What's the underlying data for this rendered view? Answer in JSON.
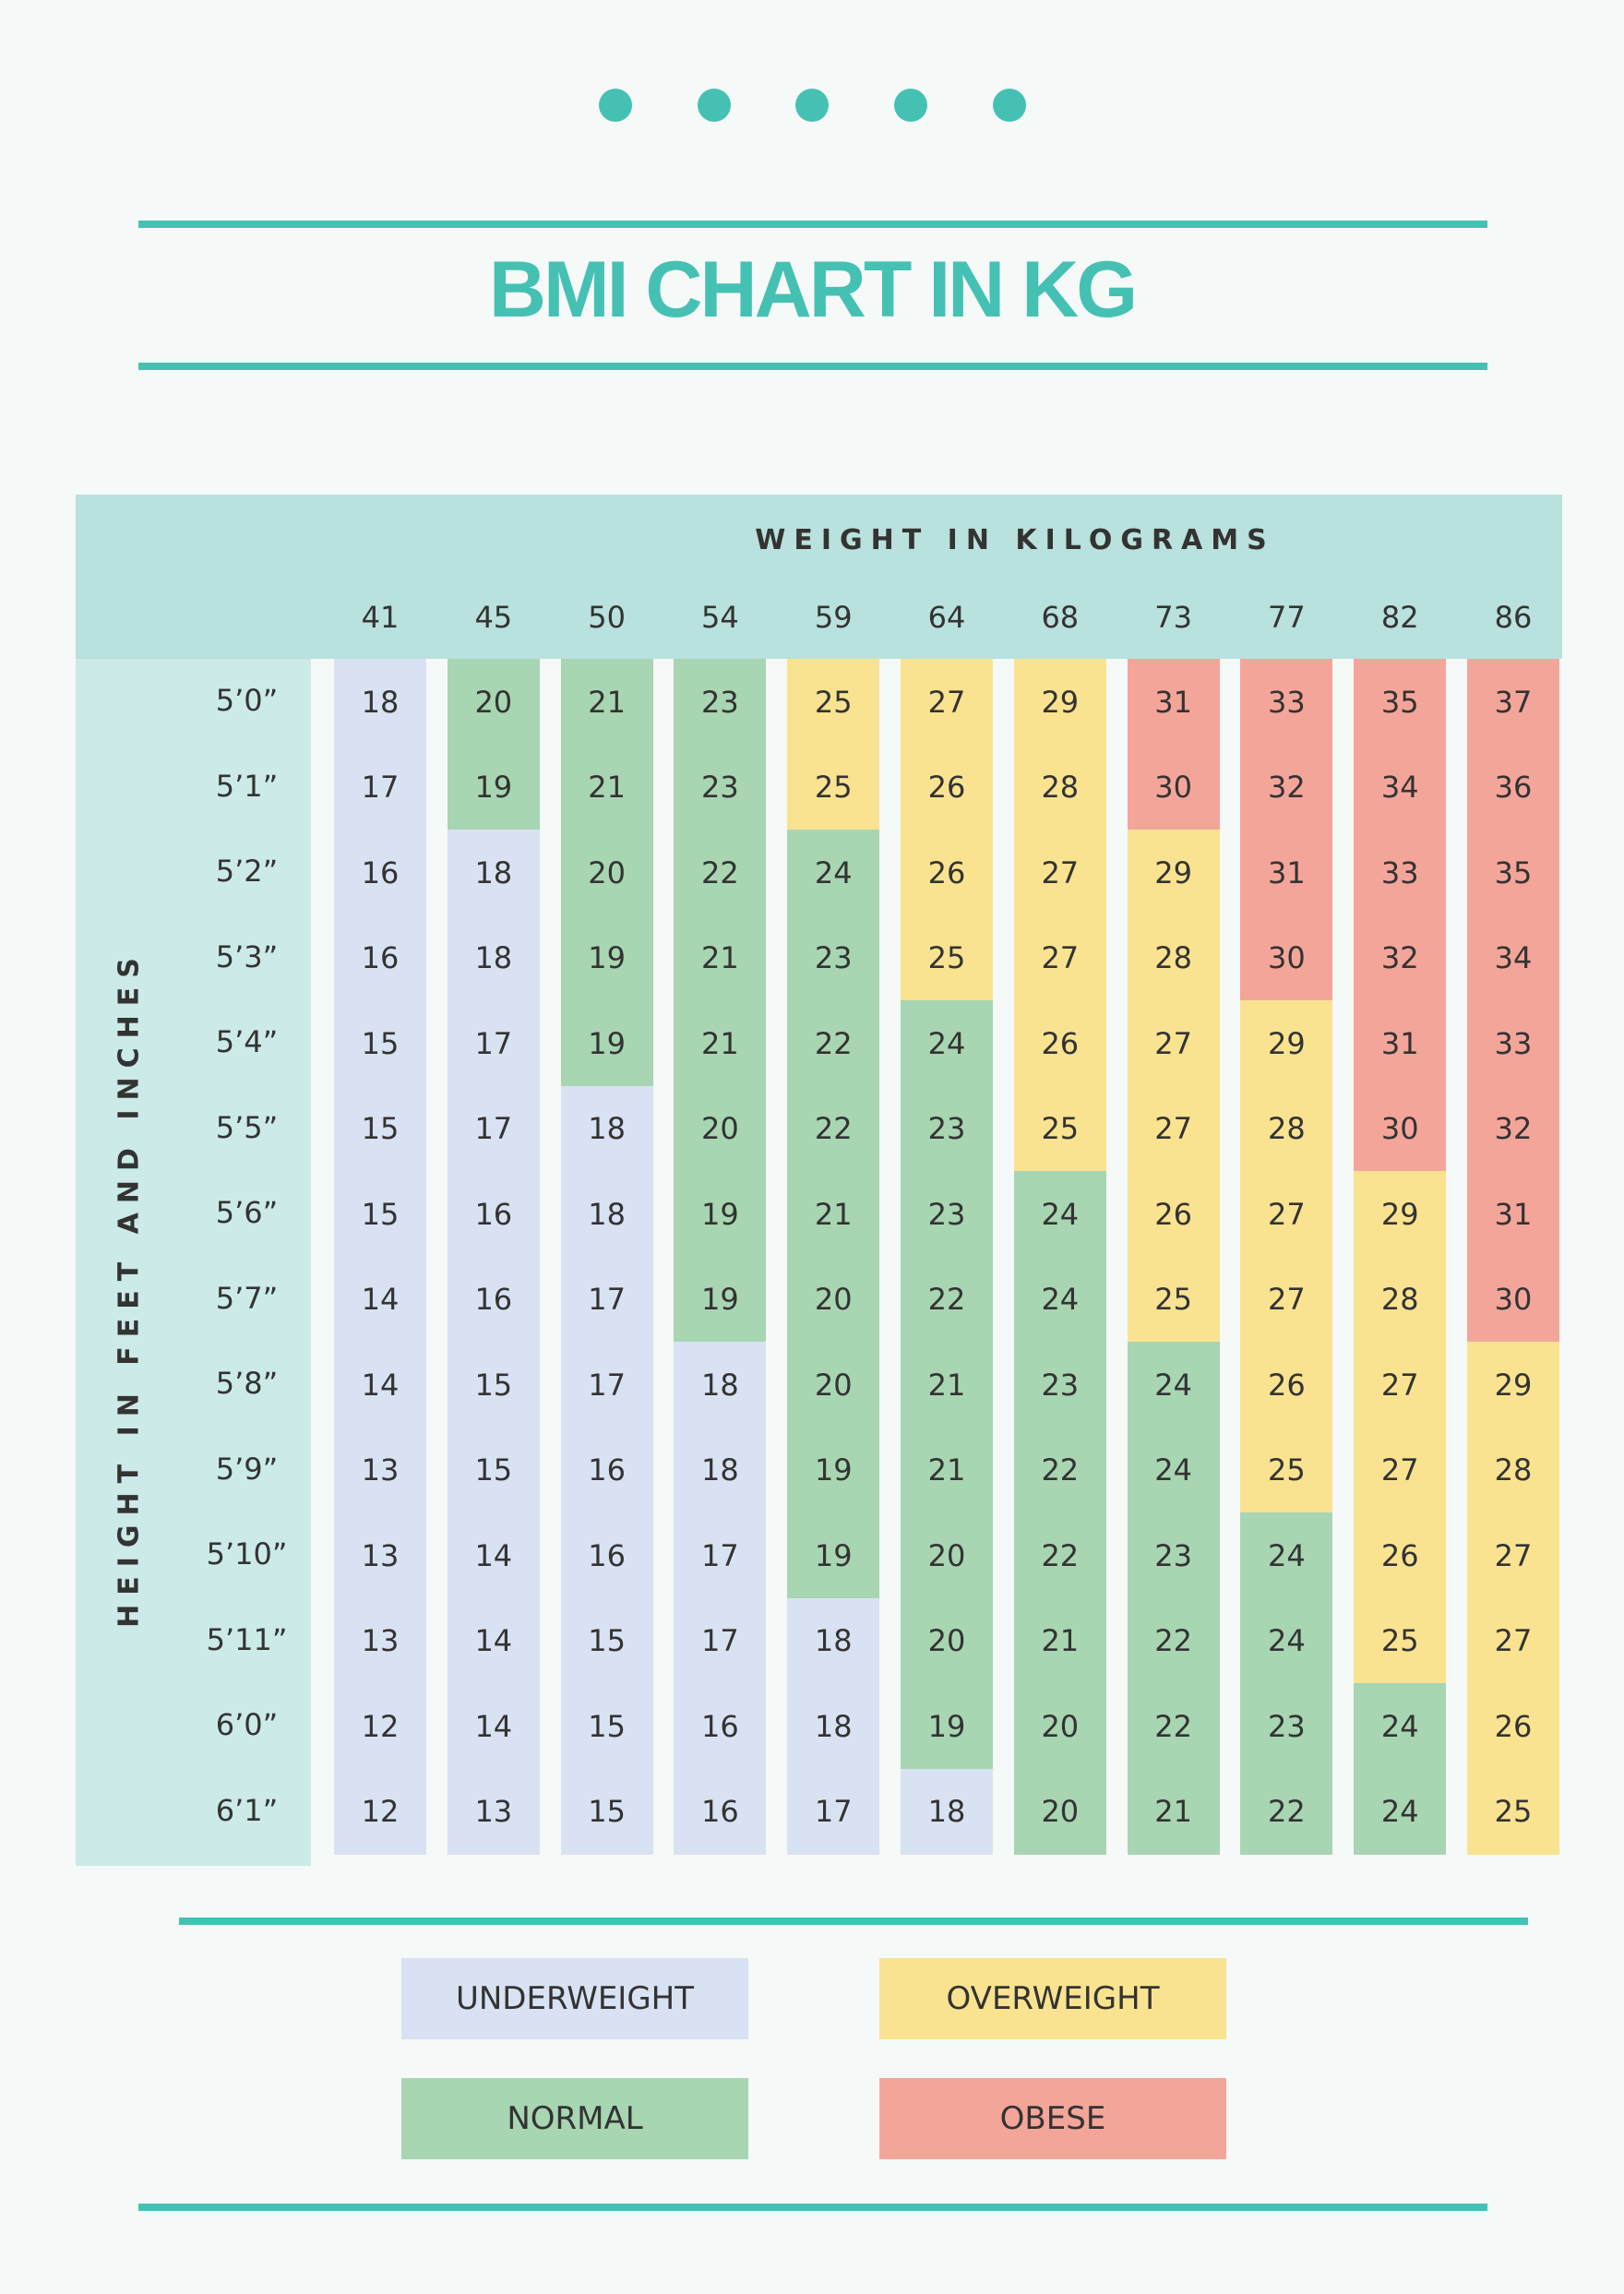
{
  "title": "BMI CHART IN KG",
  "colors": {
    "accent": "#45c1b4",
    "underweight": "#d9e2f2",
    "normal": "#a8d5b2",
    "overweight": "#fae390",
    "obese": "#f4a59a",
    "header": "#b9e1dd",
    "side": "#cbeae8"
  },
  "chart_data": {
    "type": "heatmap",
    "title": "BMI CHART IN KG",
    "xlabel": "WEIGHT IN KILOGRAMS",
    "ylabel": "HEIGHT IN FEET AND INCHES",
    "x": [
      "41",
      "45",
      "50",
      "54",
      "59",
      "64",
      "68",
      "73",
      "77",
      "82",
      "86"
    ],
    "y": [
      "5’0”",
      "5’1”",
      "5’2”",
      "5’3”",
      "5’4”",
      "5’5”",
      "5’6”",
      "5’7”",
      "5’8”",
      "5’9”",
      "5’10”",
      "5’11”",
      "6’0”",
      "6’1”"
    ],
    "values": [
      [
        18,
        20,
        21,
        23,
        25,
        27,
        29,
        31,
        33,
        35,
        37
      ],
      [
        17,
        19,
        21,
        23,
        25,
        26,
        28,
        30,
        32,
        34,
        36
      ],
      [
        16,
        18,
        20,
        22,
        24,
        26,
        27,
        29,
        31,
        33,
        35
      ],
      [
        16,
        18,
        19,
        21,
        23,
        25,
        27,
        28,
        30,
        32,
        34
      ],
      [
        15,
        17,
        19,
        21,
        22,
        24,
        26,
        27,
        29,
        31,
        33
      ],
      [
        15,
        17,
        18,
        20,
        22,
        23,
        25,
        27,
        28,
        30,
        32
      ],
      [
        15,
        16,
        18,
        19,
        21,
        23,
        24,
        26,
        27,
        29,
        31
      ],
      [
        14,
        16,
        17,
        19,
        20,
        22,
        24,
        25,
        27,
        28,
        30
      ],
      [
        14,
        15,
        17,
        18,
        20,
        21,
        23,
        24,
        26,
        27,
        29
      ],
      [
        13,
        15,
        16,
        18,
        19,
        21,
        22,
        24,
        25,
        27,
        28
      ],
      [
        13,
        14,
        16,
        17,
        19,
        20,
        22,
        23,
        24,
        26,
        27
      ],
      [
        13,
        14,
        15,
        17,
        18,
        20,
        21,
        22,
        24,
        25,
        27
      ],
      [
        12,
        14,
        15,
        16,
        18,
        19,
        20,
        22,
        23,
        24,
        26
      ],
      [
        12,
        13,
        15,
        16,
        17,
        18,
        20,
        21,
        22,
        24,
        25
      ]
    ],
    "category_bands": [
      {
        "key": "underweight",
        "max": 18
      },
      {
        "key": "normal",
        "max": 24
      },
      {
        "key": "overweight",
        "max": 29
      },
      {
        "key": "obese",
        "max": 99
      }
    ],
    "legend": [
      {
        "key": "underweight",
        "label": "UNDERWEIGHT"
      },
      {
        "key": "overweight",
        "label": "OVERWEIGHT"
      },
      {
        "key": "normal",
        "label": "NORMAL"
      },
      {
        "key": "obese",
        "label": "OBESE"
      }
    ]
  }
}
